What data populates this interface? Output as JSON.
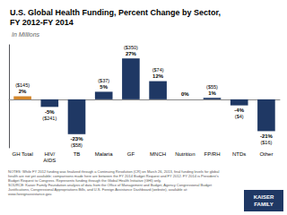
{
  "chart_data": {
    "type": "bar",
    "title": "U.S. Global Health Funding, Percent Change by Sector,\nFY 2012-FY 2014",
    "subtitle": "In Millions",
    "categories": [
      "GH Total",
      "HIV/\nAIDS",
      "TB",
      "Malaria",
      "GF",
      "MNCH",
      "Nutrition",
      "FP/RH",
      "NTDs",
      "Other"
    ],
    "values": [
      2,
      -5,
      -23,
      5,
      27,
      12,
      0,
      1,
      -4,
      -21
    ],
    "value_labels": [
      "2%",
      "-5%",
      "-23%",
      "5%",
      "27%",
      "12%",
      "0%",
      "1%",
      "-4%",
      "-21%"
    ],
    "dollar_labels": [
      "($145)",
      "($241)",
      "($58)",
      "($37)",
      "($350)",
      "($74)",
      null,
      "($55)",
      "($4)",
      "($16)"
    ],
    "colors": [
      "#D4862A",
      "#1F3864",
      "#1F3864",
      "#1F3864",
      "#1F3864",
      "#1F3864",
      "#1F3864",
      "#1F3864",
      "#1F3864",
      "#1F3864"
    ],
    "data_labels": true,
    "ylim": [
      -32,
      36
    ],
    "tick_labels": "x",
    "grid": false,
    "notes": "NOTES: While FY 2012 funding was finalized through a Continuing Resolution (CR) on March 26, 2013, final funding levels for global\nhealth are not yet available; comparisons made here are between the FY 2014 Budget Request and FY 2012. FY 2014 is President's\nBudget Request to Congress. Represents funding through the Global Health Initiative (GHI) only.\nSOURCE: Kaiser Family Foundation analysis of data from the Office of Management and Budget, Agency Congressional Budget\nJustifications, Congressional Appropriations Bills, and U.S. Foreign Assistance Dashboard (website), available at:\nwww.foreignassistance.gov.",
    "annotations": [
      "KAISER",
      "FAMILY"
    ]
  }
}
